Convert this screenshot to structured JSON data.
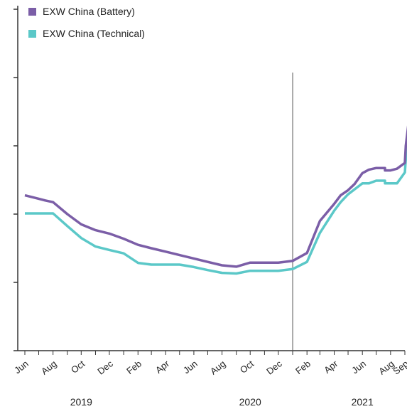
{
  "chart_data": {
    "type": "line",
    "title": "",
    "xlabel": "",
    "ylabel": "",
    "x_start": "2019-06",
    "x_end": "2021-09",
    "x_tick_labels": [
      "Jun",
      "Aug",
      "Oct",
      "Dec",
      "Feb",
      "Apr",
      "Jun",
      "Aug",
      "Oct",
      "Dec",
      "Feb",
      "Apr",
      "Jun",
      "Aug",
      "Sep"
    ],
    "x_tick_dates": [
      "2019-06",
      "2019-08",
      "2019-10",
      "2019-12",
      "2020-02",
      "2020-04",
      "2020-06",
      "2020-08",
      "2020-10",
      "2020-12",
      "2021-02",
      "2021-04",
      "2021-06",
      "2021-08",
      "2021-09"
    ],
    "year_labels": [
      {
        "label": "2019",
        "date": "2019-10"
      },
      {
        "label": "2020",
        "date": "2020-10"
      },
      {
        "label": "2021",
        "date": "2021-06"
      }
    ],
    "ylim": [
      0,
      100
    ],
    "y_tick_values": [
      0,
      20,
      40,
      60,
      80,
      100
    ],
    "y_tick_labels_shown": false,
    "grid": false,
    "divider_date": "2021-01",
    "legend_position": "top-left",
    "series": [
      {
        "name": "EXW China (Battery)",
        "color": "#7b5ea7",
        "points": [
          [
            "2019-06-01",
            45.5
          ],
          [
            "2019-07-01",
            44.5
          ],
          [
            "2019-07-15",
            44.0
          ],
          [
            "2019-08-01",
            43.5
          ],
          [
            "2019-09-01",
            40.0
          ],
          [
            "2019-10-01",
            37.0
          ],
          [
            "2019-11-01",
            35.3
          ],
          [
            "2019-12-01",
            34.3
          ],
          [
            "2020-01-01",
            32.8
          ],
          [
            "2020-02-01",
            31.0
          ],
          [
            "2020-03-01",
            30.0
          ],
          [
            "2020-04-01",
            29.0
          ],
          [
            "2020-05-01",
            28.0
          ],
          [
            "2020-06-01",
            27.0
          ],
          [
            "2020-07-01",
            26.0
          ],
          [
            "2020-08-01",
            25.0
          ],
          [
            "2020-09-01",
            24.6
          ],
          [
            "2020-10-01",
            25.8
          ],
          [
            "2020-11-01",
            25.8
          ],
          [
            "2020-12-01",
            25.8
          ],
          [
            "2021-01-01",
            26.3
          ],
          [
            "2021-02-01",
            28.6
          ],
          [
            "2021-03-01",
            38.0
          ],
          [
            "2021-04-01",
            43.0
          ],
          [
            "2021-04-15",
            45.5
          ],
          [
            "2021-05-01",
            47.0
          ],
          [
            "2021-05-15",
            48.8
          ],
          [
            "2021-06-01",
            52.0
          ],
          [
            "2021-06-15",
            53.0
          ],
          [
            "2021-07-01",
            53.5
          ],
          [
            "2021-07-20",
            53.5
          ],
          [
            "2021-07-20",
            52.8
          ],
          [
            "2021-08-01",
            52.8
          ],
          [
            "2021-08-15",
            53.3
          ],
          [
            "2021-09-01",
            55.0
          ],
          [
            "2021-09-03",
            60.0
          ],
          [
            "2021-09-15",
            73.5
          ]
        ]
      },
      {
        "name": "EXW China (Technical)",
        "color": "#5bc8c8",
        "points": [
          [
            "2019-06-01",
            40.2
          ],
          [
            "2019-07-01",
            40.2
          ],
          [
            "2019-08-01",
            40.2
          ],
          [
            "2019-09-01",
            36.5
          ],
          [
            "2019-10-01",
            33.0
          ],
          [
            "2019-11-01",
            30.5
          ],
          [
            "2019-12-01",
            29.5
          ],
          [
            "2020-01-01",
            28.5
          ],
          [
            "2020-02-01",
            25.7
          ],
          [
            "2020-03-01",
            25.2
          ],
          [
            "2020-04-01",
            25.2
          ],
          [
            "2020-05-01",
            25.2
          ],
          [
            "2020-06-01",
            24.5
          ],
          [
            "2020-07-01",
            23.6
          ],
          [
            "2020-08-01",
            22.8
          ],
          [
            "2020-09-01",
            22.6
          ],
          [
            "2020-10-01",
            23.4
          ],
          [
            "2020-11-01",
            23.4
          ],
          [
            "2020-12-01",
            23.4
          ],
          [
            "2021-01-01",
            23.9
          ],
          [
            "2021-02-01",
            26.0
          ],
          [
            "2021-03-01",
            34.5
          ],
          [
            "2021-04-01",
            41.0
          ],
          [
            "2021-04-15",
            43.5
          ],
          [
            "2021-05-01",
            45.8
          ],
          [
            "2021-06-01",
            49.0
          ],
          [
            "2021-06-15",
            49.0
          ],
          [
            "2021-07-01",
            49.8
          ],
          [
            "2021-07-20",
            49.8
          ],
          [
            "2021-07-20",
            49.0
          ],
          [
            "2021-08-01",
            49.0
          ],
          [
            "2021-08-15",
            49.0
          ],
          [
            "2021-09-01",
            52.2
          ],
          [
            "2021-09-03",
            56.0
          ],
          [
            "2021-09-15",
            72.0
          ]
        ]
      }
    ]
  }
}
